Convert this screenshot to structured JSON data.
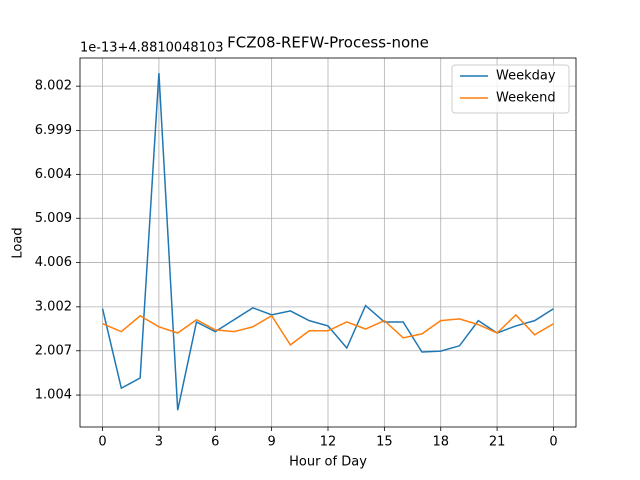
{
  "chart_data": {
    "type": "line",
    "title": "FCZ08-REFW-Process-none",
    "offset_text": "1e-13+4.8810048103",
    "xlabel": "Hour of Day",
    "ylabel": "Load",
    "x": [
      0,
      1,
      2,
      3,
      4,
      5,
      6,
      7,
      8,
      9,
      10,
      11,
      12,
      13,
      14,
      15,
      16,
      17,
      18,
      19,
      20,
      21,
      22,
      23,
      24
    ],
    "series": [
      {
        "name": "Weekday",
        "color": "#1f77b4",
        "values": [
          2.96,
          1.16,
          1.39,
          8.3,
          0.66,
          2.66,
          2.44,
          2.71,
          2.98,
          2.82,
          2.91,
          2.69,
          2.57,
          2.07,
          3.03,
          2.66,
          2.66,
          1.98,
          2.0,
          2.12,
          2.69,
          2.41,
          2.57,
          2.69,
          2.96
        ]
      },
      {
        "name": "Weekend",
        "color": "#ff7f0e",
        "values": [
          2.62,
          2.44,
          2.8,
          2.55,
          2.41,
          2.71,
          2.48,
          2.44,
          2.55,
          2.8,
          2.14,
          2.46,
          2.46,
          2.66,
          2.5,
          2.69,
          2.3,
          2.39,
          2.69,
          2.73,
          2.6,
          2.41,
          2.82,
          2.37,
          2.62
        ]
      }
    ],
    "xlim": [
      -1.2,
      25.2
    ],
    "xticks": [
      0,
      3,
      6,
      9,
      12,
      15,
      18,
      21,
      {
        "value": 24,
        "label": "0"
      }
    ],
    "ylim": [
      0.28,
      8.64
    ],
    "yticks": [
      1.004,
      2.007,
      3.002,
      4.006,
      5.009,
      6.004,
      6.999,
      8.002
    ],
    "grid": true,
    "legend": "upper right"
  }
}
